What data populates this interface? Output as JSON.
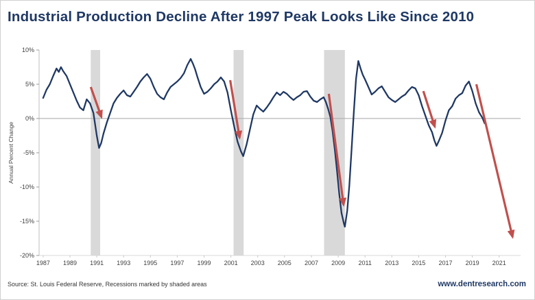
{
  "title": "Industrial Production Decline After 1997 Peak Looks Like Since 2010",
  "source": "Source: St. Louis Federal Reserve, Recessions marked by shaded areas",
  "website": "www.dentresearch.com",
  "brand_color": "#1f3864",
  "chart_data": {
    "type": "line",
    "title": "Industrial Production Decline After 1997 Peak Looks Like Since 2010",
    "xlabel": "",
    "ylabel": "Annual Percent Change",
    "xlim": [
      1986.7,
      2022.6
    ],
    "ylim": [
      -20,
      10
    ],
    "yticks": [
      10,
      5,
      0,
      -5,
      -10,
      -15,
      -20
    ],
    "xticks": [
      1987,
      1989,
      1991,
      1993,
      1995,
      1997,
      1999,
      2001,
      2003,
      2005,
      2007,
      2009,
      2011,
      2013,
      2015,
      2017,
      2019,
      2021
    ],
    "grid": false,
    "legend": false,
    "line_color": "#1f3864",
    "arrow_color": "#c0504d",
    "recession_color": "#d9d9d9",
    "recessions": [
      {
        "start": 1990.55,
        "end": 1991.25
      },
      {
        "start": 2001.2,
        "end": 2001.95
      },
      {
        "start": 2007.95,
        "end": 2009.5
      }
    ],
    "series": [
      {
        "name": "Industrial Production, Annual Percent Change",
        "points": [
          [
            1987.0,
            3.0
          ],
          [
            1987.25,
            4.2
          ],
          [
            1987.5,
            5.0
          ],
          [
            1987.75,
            6.2
          ],
          [
            1988.0,
            7.3
          ],
          [
            1988.17,
            6.8
          ],
          [
            1988.33,
            7.5
          ],
          [
            1988.5,
            6.9
          ],
          [
            1988.75,
            6.2
          ],
          [
            1989.0,
            5.0
          ],
          [
            1989.25,
            3.8
          ],
          [
            1989.5,
            2.6
          ],
          [
            1989.75,
            1.6
          ],
          [
            1990.0,
            1.2
          ],
          [
            1990.25,
            2.8
          ],
          [
            1990.5,
            2.2
          ],
          [
            1990.75,
            0.8
          ],
          [
            1991.0,
            -2.5
          ],
          [
            1991.17,
            -4.3
          ],
          [
            1991.33,
            -3.6
          ],
          [
            1991.5,
            -2.2
          ],
          [
            1991.75,
            -0.6
          ],
          [
            1992.0,
            0.8
          ],
          [
            1992.25,
            2.2
          ],
          [
            1992.5,
            3.0
          ],
          [
            1992.75,
            3.6
          ],
          [
            1993.0,
            4.1
          ],
          [
            1993.25,
            3.4
          ],
          [
            1993.5,
            3.2
          ],
          [
            1993.75,
            3.9
          ],
          [
            1994.0,
            4.6
          ],
          [
            1994.25,
            5.4
          ],
          [
            1994.5,
            6.0
          ],
          [
            1994.75,
            6.5
          ],
          [
            1995.0,
            5.8
          ],
          [
            1995.25,
            4.6
          ],
          [
            1995.5,
            3.6
          ],
          [
            1995.75,
            3.1
          ],
          [
            1996.0,
            2.8
          ],
          [
            1996.25,
            3.8
          ],
          [
            1996.5,
            4.6
          ],
          [
            1996.75,
            5.0
          ],
          [
            1997.0,
            5.4
          ],
          [
            1997.25,
            5.9
          ],
          [
            1997.5,
            6.6
          ],
          [
            1997.75,
            7.8
          ],
          [
            1998.0,
            8.7
          ],
          [
            1998.17,
            8.0
          ],
          [
            1998.33,
            7.2
          ],
          [
            1998.5,
            6.1
          ],
          [
            1998.75,
            4.6
          ],
          [
            1999.0,
            3.6
          ],
          [
            1999.25,
            3.9
          ],
          [
            1999.5,
            4.4
          ],
          [
            1999.75,
            5.0
          ],
          [
            2000.0,
            5.4
          ],
          [
            2000.25,
            6.0
          ],
          [
            2000.5,
            5.4
          ],
          [
            2000.75,
            3.8
          ],
          [
            2001.0,
            1.2
          ],
          [
            2001.25,
            -1.2
          ],
          [
            2001.5,
            -3.4
          ],
          [
            2001.75,
            -4.8
          ],
          [
            2001.92,
            -5.5
          ],
          [
            2002.17,
            -3.8
          ],
          [
            2002.42,
            -1.6
          ],
          [
            2002.67,
            0.6
          ],
          [
            2002.92,
            1.9
          ],
          [
            2003.17,
            1.4
          ],
          [
            2003.42,
            1.0
          ],
          [
            2003.67,
            1.6
          ],
          [
            2003.92,
            2.3
          ],
          [
            2004.17,
            3.1
          ],
          [
            2004.42,
            3.8
          ],
          [
            2004.67,
            3.4
          ],
          [
            2004.92,
            3.9
          ],
          [
            2005.17,
            3.6
          ],
          [
            2005.42,
            3.1
          ],
          [
            2005.67,
            2.7
          ],
          [
            2005.92,
            3.1
          ],
          [
            2006.17,
            3.4
          ],
          [
            2006.42,
            3.9
          ],
          [
            2006.67,
            4.0
          ],
          [
            2006.92,
            3.2
          ],
          [
            2007.17,
            2.6
          ],
          [
            2007.42,
            2.4
          ],
          [
            2007.67,
            2.8
          ],
          [
            2007.92,
            3.1
          ],
          [
            2008.08,
            2.4
          ],
          [
            2008.25,
            1.4
          ],
          [
            2008.42,
            0.2
          ],
          [
            2008.58,
            -1.8
          ],
          [
            2008.75,
            -4.6
          ],
          [
            2008.92,
            -7.8
          ],
          [
            2009.08,
            -11.0
          ],
          [
            2009.25,
            -13.8
          ],
          [
            2009.42,
            -15.3
          ],
          [
            2009.5,
            -15.8
          ],
          [
            2009.67,
            -13.5
          ],
          [
            2009.83,
            -9.8
          ],
          [
            2010.0,
            -4.5
          ],
          [
            2010.17,
            1.0
          ],
          [
            2010.33,
            5.8
          ],
          [
            2010.5,
            8.4
          ],
          [
            2010.67,
            7.3
          ],
          [
            2010.83,
            6.4
          ],
          [
            2011.0,
            5.7
          ],
          [
            2011.25,
            4.6
          ],
          [
            2011.5,
            3.5
          ],
          [
            2011.75,
            3.9
          ],
          [
            2012.0,
            4.4
          ],
          [
            2012.25,
            4.7
          ],
          [
            2012.5,
            3.9
          ],
          [
            2012.75,
            3.1
          ],
          [
            2013.0,
            2.7
          ],
          [
            2013.25,
            2.4
          ],
          [
            2013.5,
            2.8
          ],
          [
            2013.75,
            3.2
          ],
          [
            2014.0,
            3.5
          ],
          [
            2014.25,
            4.1
          ],
          [
            2014.5,
            4.6
          ],
          [
            2014.75,
            4.4
          ],
          [
            2015.0,
            3.4
          ],
          [
            2015.25,
            1.8
          ],
          [
            2015.5,
            0.4
          ],
          [
            2015.75,
            -1.0
          ],
          [
            2016.0,
            -2.0
          ],
          [
            2016.17,
            -3.2
          ],
          [
            2016.33,
            -4.0
          ],
          [
            2016.5,
            -3.3
          ],
          [
            2016.75,
            -2.1
          ],
          [
            2017.0,
            -0.3
          ],
          [
            2017.25,
            1.2
          ],
          [
            2017.5,
            1.8
          ],
          [
            2017.75,
            2.9
          ],
          [
            2018.0,
            3.4
          ],
          [
            2018.25,
            3.7
          ],
          [
            2018.5,
            4.8
          ],
          [
            2018.75,
            5.4
          ],
          [
            2019.0,
            4.0
          ],
          [
            2019.25,
            2.2
          ],
          [
            2019.5,
            0.9
          ],
          [
            2019.75,
            0.1
          ],
          [
            2019.92,
            -0.7
          ]
        ]
      }
    ],
    "arrows": [
      {
        "x1": 1990.55,
        "y1": 4.6,
        "x2": 1991.35,
        "y2": 0.2
      },
      {
        "x1": 2000.95,
        "y1": 5.6,
        "x2": 2001.65,
        "y2": -2.8
      },
      {
        "x1": 2008.3,
        "y1": 3.6,
        "x2": 2009.4,
        "y2": -12.6
      },
      {
        "x1": 2015.35,
        "y1": 4.0,
        "x2": 2016.2,
        "y2": -1.2
      },
      {
        "x1": 2019.3,
        "y1": 5.0,
        "x2": 2022.0,
        "y2": -17.3
      }
    ]
  }
}
